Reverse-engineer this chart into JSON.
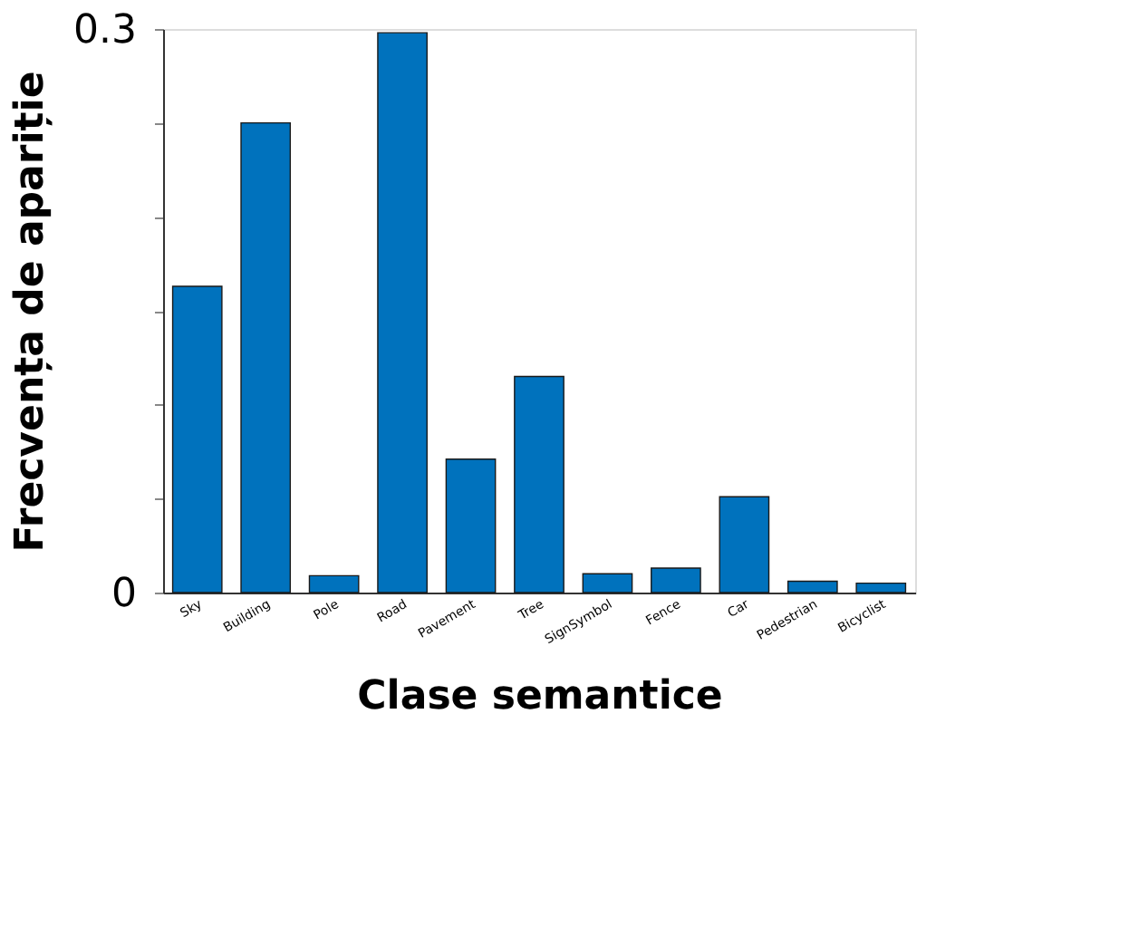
{
  "chart_data": {
    "type": "bar",
    "xlabel": "Clase semantice",
    "ylabel": "Frecvența de apariție",
    "categories": [
      "Sky",
      "Building",
      "Pole",
      "Road",
      "Pavement",
      "Tree",
      "SignSymbol",
      "Fence",
      "Car",
      "Pedestrian",
      "Bicyclist"
    ],
    "values": [
      0.163,
      0.25,
      0.009,
      0.298,
      0.071,
      0.115,
      0.01,
      0.013,
      0.051,
      0.006,
      0.005
    ],
    "color": "#0072bd",
    "ylim": [
      0,
      0.3
    ],
    "yticks": [
      0,
      {
        "value": 0.05,
        "label": null
      },
      {
        "value": 0.1,
        "label": null
      },
      {
        "value": 0.15,
        "label": null
      },
      {
        "value": 0.2,
        "label": null
      },
      {
        "value": 0.25,
        "label": null
      },
      0.3
    ],
    "grid": false
  }
}
